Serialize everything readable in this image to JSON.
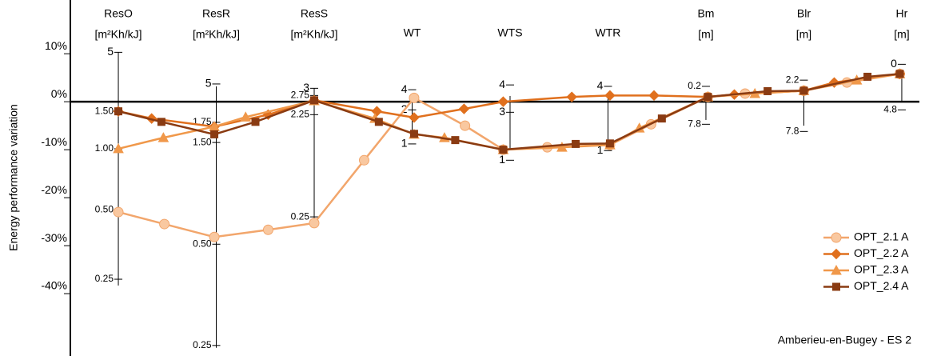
{
  "chart_data": {
    "type": "line",
    "y_label": "Energy performance variation",
    "annotation": "Amberieu-en-Bugey - ES 2",
    "ylim": [
      -53,
      21.2
    ],
    "xlim": [
      -0.49,
      8.18
    ],
    "yticks": [
      {
        "value": 10,
        "label": "10%"
      },
      {
        "value": 0,
        "label": "0%"
      },
      {
        "value": -10,
        "label": "-10%"
      },
      {
        "value": -20,
        "label": "-20%"
      },
      {
        "value": -30,
        "label": "-30%"
      },
      {
        "value": -40,
        "label": "-40%"
      }
    ],
    "legend": "lower right",
    "param_axes": [
      {
        "name": "ResO",
        "unit": "[m²Kh/kJ]",
        "x": 0,
        "range": [
          10.3,
          -38.3
        ],
        "labels": [
          {
            "text": "5",
            "y": 10.3
          },
          {
            "text": "1.50",
            "y": -2
          },
          {
            "text": "1.00",
            "y": -9.8
          },
          {
            "text": "0.50",
            "y": -22.5
          },
          {
            "text": "0.25",
            "y": -37
          }
        ]
      },
      {
        "name": "ResR",
        "unit": "[m²Kh/kJ]",
        "x": 1,
        "range": [
          3.2,
          -51.3
        ],
        "labels": [
          {
            "text": "5",
            "y": 3.7
          },
          {
            "text": "1.75",
            "y": -4.3
          },
          {
            "text": "1.50",
            "y": -8.5
          },
          {
            "text": "0.50",
            "y": -29.7
          },
          {
            "text": "0.25",
            "y": -50.8
          }
        ]
      },
      {
        "name": "ResS",
        "unit": "[m²Kh/kJ]",
        "x": 2,
        "range": [
          2.8,
          -25.5
        ],
        "labels": [
          {
            "text": "3",
            "y": 2.8
          },
          {
            "text": "2.75",
            "y": 1.3
          },
          {
            "text": "2.25",
            "y": -2.7
          },
          {
            "text": "0.25",
            "y": -24
          }
        ]
      },
      {
        "name": "WT",
        "x": 3,
        "range": [
          0.8,
          -6.7
        ],
        "labels": [
          {
            "text": "4",
            "y": 2.5
          },
          {
            "text": "2",
            "y": -1.7
          },
          {
            "text": "1",
            "y": -8.8
          }
        ]
      },
      {
        "name": "WTS",
        "x": 4,
        "range": [
          1.2,
          -10
        ],
        "labels": [
          {
            "text": "4",
            "y": 3.5
          },
          {
            "text": "3",
            "y": -2.2
          },
          {
            "text": "1",
            "y": -12.2
          }
        ]
      },
      {
        "name": "WTR",
        "x": 5,
        "range": [
          1.3,
          -9
        ],
        "labels": [
          {
            "text": "4",
            "y": 3.2
          },
          {
            "text": "1",
            "y": -10.2
          }
        ]
      },
      {
        "name": "Bm",
        "unit": "[m]",
        "x": 6,
        "range": [
          1,
          -3.8
        ],
        "labels": [
          {
            "text": "0.2",
            "y": 3.2
          },
          {
            "text": "7.8",
            "y": -4.7
          }
        ]
      },
      {
        "name": "Blr",
        "unit": "[m]",
        "x": 7,
        "range": [
          2.3,
          -5
        ],
        "labels": [
          {
            "text": "2.2",
            "y": 4.5
          },
          {
            "text": "7.8",
            "y": -6.2
          }
        ]
      },
      {
        "name": "Hr",
        "unit": "[m]",
        "x": 8,
        "range": [
          5.8,
          0
        ],
        "labels": [
          {
            "text": "0",
            "y": 7.8
          },
          {
            "text": "4.8",
            "y": -1.7
          }
        ]
      }
    ],
    "series": [
      {
        "name": "OPT_2.1 A",
        "color": "#f2a66c",
        "fill": "#f9c8a0",
        "marker": "circle",
        "x": [
          0,
          0.47,
          0.98,
          1.53,
          2,
          2.51,
          3.02,
          3.54,
          3.93,
          4.38,
          5.02,
          5.44,
          6.02,
          6.4,
          7,
          7.44,
          7.98
        ],
        "values": [
          -23,
          -25.5,
          -28.2,
          -26.7,
          -25.3,
          -12.2,
          0.8,
          -5,
          -10,
          -9.5,
          -9,
          -4.7,
          1,
          1.7,
          2.3,
          4,
          5.8
        ]
      },
      {
        "name": "OPT_2.2 A",
        "color": "#e0701e",
        "fill": "#e0701e",
        "marker": "diamond",
        "x": [
          0,
          0.34,
          0.98,
          1.53,
          2,
          2.64,
          3.02,
          3.53,
          3.93,
          4.63,
          5.02,
          5.47,
          6.02,
          6.29,
          7,
          7.31,
          7.98
        ],
        "values": [
          -2,
          -3.5,
          -5.2,
          -2.7,
          0.3,
          -2,
          -3.3,
          -1.5,
          0,
          1,
          1.3,
          1.3,
          1,
          1.5,
          2.3,
          4,
          5.8
        ]
      },
      {
        "name": "OPT_2.3 A",
        "color": "#f0984a",
        "fill": "#f0984a",
        "marker": "triangle",
        "x": [
          0,
          0.46,
          0.98,
          1.3,
          2,
          2.62,
          3.02,
          3.33,
          3.93,
          4.53,
          5.02,
          5.32,
          6.02,
          6.5,
          7,
          7.54,
          7.98
        ],
        "values": [
          -9.8,
          -7.5,
          -5.2,
          -3.2,
          0.2,
          -3.5,
          -6.8,
          -7.5,
          -10,
          -9.5,
          -9,
          -5.5,
          1,
          1.7,
          2.3,
          4.5,
          5.8
        ]
      },
      {
        "name": "OPT_2.4 A",
        "color": "#8a3b12",
        "fill": "#8a3b12",
        "marker": "square",
        "x": [
          0,
          0.44,
          0.98,
          1.4,
          2,
          2.66,
          3.02,
          3.44,
          3.93,
          4.67,
          5.02,
          5.55,
          6.02,
          6.63,
          7,
          7.65,
          7.98
        ],
        "values": [
          -2,
          -4.2,
          -6.8,
          -4.2,
          0.3,
          -4.2,
          -6.7,
          -8,
          -10,
          -8.8,
          -8.7,
          -3.5,
          1,
          2.2,
          2.3,
          5.2,
          5.8
        ]
      }
    ]
  }
}
